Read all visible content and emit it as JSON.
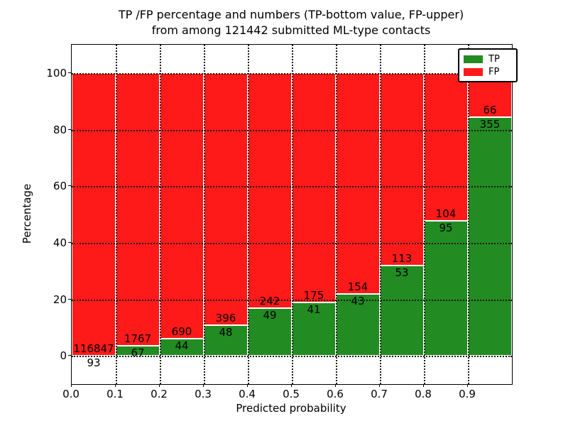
{
  "title": {
    "line1": "TP /FP percentage and numbers (TP-bottom value, FP-upper)",
    "line2": "from among 121442 submitted ML-type contacts"
  },
  "axes": {
    "xlabel": "Predicted probability",
    "ylabel": "Percentage",
    "x_tick_labels": [
      "0.0",
      "0.1",
      "0.2",
      "0.3",
      "0.4",
      "0.5",
      "0.6",
      "0.7",
      "0.8",
      "0.9"
    ],
    "x_tick_values": [
      0.0,
      0.1,
      0.2,
      0.3,
      0.4,
      0.5,
      0.6,
      0.7,
      0.8,
      0.9
    ],
    "y_tick_labels": [
      "0",
      "20",
      "40",
      "60",
      "80",
      "100"
    ],
    "y_tick_values": [
      0,
      20,
      40,
      60,
      80,
      100
    ]
  },
  "legend": {
    "items": [
      {
        "label": "TP",
        "color": "#228b22"
      },
      {
        "label": "FP",
        "color": "#ff1a1a"
      }
    ]
  },
  "colors": {
    "tp_green": "#228b22",
    "fp_red": "#ff1a1a",
    "grid": "#1a1a1a",
    "text": "#000000",
    "background": "#ffffff"
  },
  "chart_data": {
    "type": "bar",
    "stacked": true,
    "normalized_to_percent": 100,
    "title": "TP /FP percentage and numbers (TP-bottom value, FP-upper) from among 121442 submitted ML-type contacts",
    "xlabel": "Predicted probability",
    "ylabel": "Percentage",
    "xlim": [
      0.0,
      1.0
    ],
    "ylim": [
      -10,
      110
    ],
    "grid": true,
    "grid_style": "dotted",
    "legend_position": "upper right",
    "bin_edges": [
      0.0,
      0.1,
      0.2,
      0.3,
      0.4,
      0.5,
      0.6,
      0.7,
      0.8,
      0.9,
      1.0
    ],
    "total_contacts": 121442,
    "series": [
      {
        "name": "TP",
        "color": "#228b22",
        "values": [
          93,
          67,
          44,
          48,
          49,
          41,
          43,
          53,
          95,
          355
        ]
      },
      {
        "name": "FP",
        "color": "#ff1a1a",
        "values": [
          116847,
          1767,
          690,
          396,
          242,
          175,
          154,
          113,
          104,
          66
        ]
      }
    ],
    "tp_percent_per_bin": [
      0.08,
      3.65,
      5.99,
      10.81,
      16.84,
      18.98,
      21.83,
      31.93,
      47.74,
      84.32
    ]
  }
}
